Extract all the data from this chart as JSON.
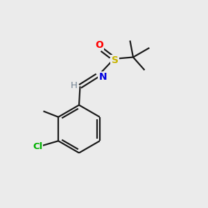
{
  "background_color": "#ebebeb",
  "bond_color": "#1a1a1a",
  "atom_colors": {
    "O": "#ff0000",
    "S": "#c8b400",
    "N": "#0000e0",
    "Cl": "#00b000",
    "C": "#1a1a1a",
    "H": "#708090"
  },
  "figsize": [
    3.0,
    3.0
  ],
  "dpi": 100,
  "bond_lw": 1.6
}
